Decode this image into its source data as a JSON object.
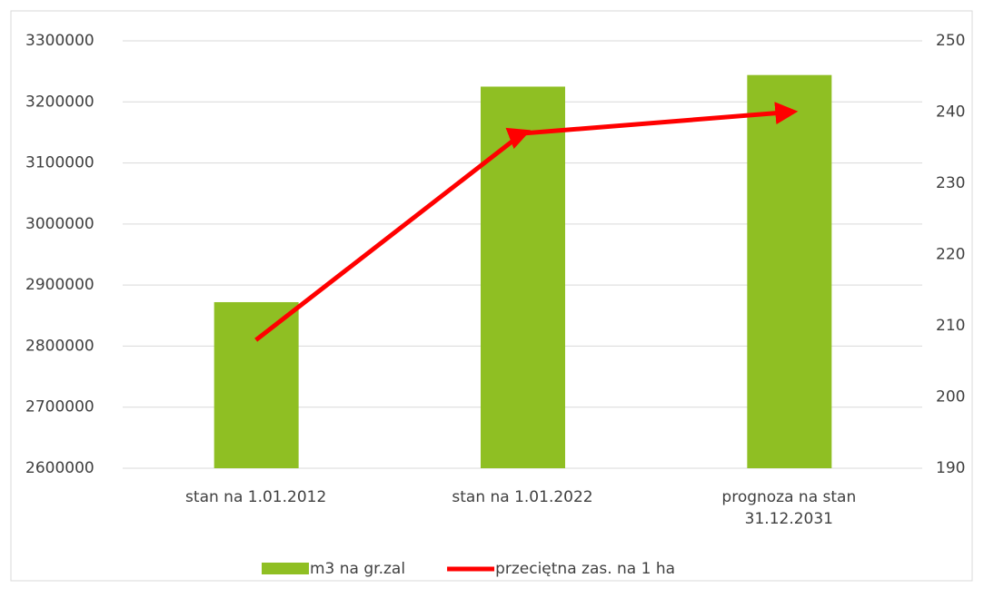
{
  "chart_data": {
    "type": "bar_line",
    "categories": [
      "stan na 1.01.2012",
      "stan na 1.01.2022",
      "prognoza na stan 31.12.2031"
    ],
    "series": [
      {
        "name": "m3 na gr.zal",
        "type": "bar",
        "color": "#8fbf23",
        "values": [
          2872000,
          3225000,
          3244000
        ]
      },
      {
        "name": "przeciętna zas. na 1 ha",
        "type": "line",
        "axis": "y2",
        "color": "#ff0000",
        "values": [
          208,
          237,
          240
        ]
      }
    ],
    "ylim": [
      2600000,
      3300000
    ],
    "yticks": [
      2600000,
      2700000,
      2800000,
      2900000,
      3000000,
      3100000,
      3200000,
      3300000
    ],
    "y2lim": [
      190,
      250
    ],
    "y2ticks": [
      190,
      200,
      210,
      220,
      230,
      240,
      250
    ],
    "grid": true,
    "legend": "bottom"
  }
}
